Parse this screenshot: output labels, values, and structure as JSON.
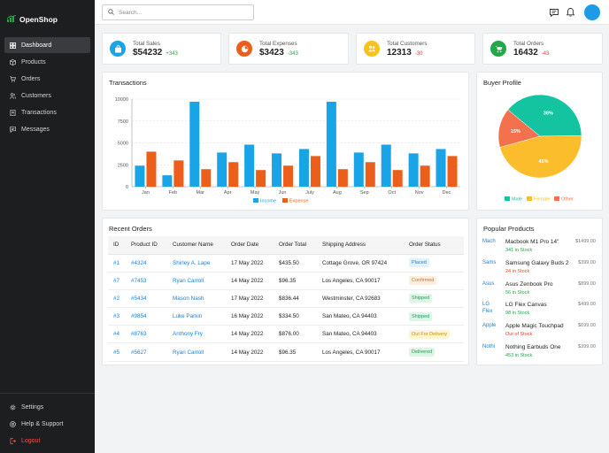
{
  "brand": {
    "name": "OpenShop"
  },
  "colors": {
    "sidebar": "#1d1e20",
    "accent": "#1e9be5",
    "income": "#18a4e6",
    "expense": "#ec5f1b"
  },
  "sidebar": {
    "items": [
      {
        "label": "Dashboard",
        "icon": "grid-icon",
        "active": true
      },
      {
        "label": "Products",
        "icon": "box-icon"
      },
      {
        "label": "Orders",
        "icon": "cart-icon"
      },
      {
        "label": "Customers",
        "icon": "users-icon"
      },
      {
        "label": "Transactions",
        "icon": "receipt-icon"
      },
      {
        "label": "Messages",
        "icon": "message-icon"
      }
    ],
    "bottom": [
      {
        "label": "Settings",
        "icon": "gear-icon"
      },
      {
        "label": "Help & Support",
        "icon": "help-icon"
      },
      {
        "label": "Logout",
        "icon": "logout-icon"
      }
    ]
  },
  "search": {
    "placeholder": "Search..."
  },
  "stats": [
    {
      "label": "Total Sales",
      "value": "$54232",
      "change": "+343",
      "color": "#18a4e6",
      "icon": "shopping-bag-icon"
    },
    {
      "label": "Total Expenses",
      "value": "$3423",
      "change": "-343",
      "color": "#ec5f1b",
      "icon": "pie-icon"
    },
    {
      "label": "Total Customers",
      "value": "12313",
      "change": "-30",
      "color": "#f6c21c",
      "icon": "users-icon"
    },
    {
      "label": "Total Orders",
      "value": "16432",
      "change": "-43",
      "color": "#22a74b",
      "icon": "cart-icon"
    }
  ],
  "transactions": {
    "title": "Transactions",
    "chart_data": {
      "type": "bar",
      "categories": [
        "Jan",
        "Feb",
        "Mar",
        "Apr",
        "May",
        "Jun",
        "July",
        "Aug",
        "Sep",
        "Oct",
        "Nov",
        "Dec"
      ],
      "series": [
        {
          "name": "Income",
          "values": [
            2400,
            1300,
            9700,
            3900,
            4800,
            3800,
            4300,
            9700,
            3900,
            4800,
            3800,
            4300
          ]
        },
        {
          "name": "Expense",
          "values": [
            4000,
            3000,
            2000,
            2800,
            1900,
            2400,
            3500,
            2000,
            2800,
            1900,
            2400,
            3500
          ]
        }
      ],
      "ylim": [
        0,
        10000
      ],
      "yticks": [
        "0",
        "2500",
        "5000",
        "7500",
        "10000"
      ],
      "grid": true,
      "legend": "bottom-center"
    }
  },
  "buyer_profile": {
    "title": "Buyer Profile",
    "chart_data": {
      "type": "pie",
      "slices": [
        {
          "name": "Male",
          "value": 38,
          "label": "38%",
          "color": "#14c4a0"
        },
        {
          "name": "Female",
          "value": 45,
          "label": "45%",
          "color": "#fbbd2b"
        },
        {
          "name": "Other",
          "value": 15,
          "label": "15%",
          "color": "#f4714d"
        }
      ],
      "legend": "bottom-center"
    }
  },
  "orders": {
    "title": "Recent Orders",
    "columns": [
      "ID",
      "Product ID",
      "Customer Name",
      "Order Date",
      "Order Total",
      "Shipping Address",
      "Order Status"
    ],
    "rows": [
      {
        "id": "#1",
        "pid": "#4324",
        "name": "Shirley A. Lape",
        "date": "17 May 2022",
        "total": "$435.50",
        "addr": "Cottage Grove, OR 97424",
        "status": "Placed",
        "sclass": "badge-placed"
      },
      {
        "id": "#7",
        "pid": "#7453",
        "name": "Ryan Carroll",
        "date": "14 May 2022",
        "total": "$96.35",
        "addr": "Los Angeles, CA 90017",
        "status": "Confirmed",
        "sclass": "badge-confirmed"
      },
      {
        "id": "#2",
        "pid": "#5434",
        "name": "Mason Nash",
        "date": "17 May 2022",
        "total": "$836.44",
        "addr": "Westminster, CA 92683",
        "status": "Shipped",
        "sclass": "badge-shipped"
      },
      {
        "id": "#3",
        "pid": "#9854",
        "name": "Luke Parkin",
        "date": "16 May 2022",
        "total": "$334.50",
        "addr": "San Mateo, CA 94403",
        "status": "Shipped",
        "sclass": "badge-shipped"
      },
      {
        "id": "#4",
        "pid": "#8763",
        "name": "Anthony Fry",
        "date": "14 May 2022",
        "total": "$876.00",
        "addr": "San Mateo, CA 94403",
        "status": "Out For Delivery",
        "sclass": "badge-ofd"
      },
      {
        "id": "#5",
        "pid": "#5627",
        "name": "Ryan Carroll",
        "date": "14 May 2022",
        "total": "$96.35",
        "addr": "Los Angeles, CA 90017",
        "status": "Delivered",
        "sclass": "badge-delivered"
      }
    ]
  },
  "products": {
    "title": "Popular Products",
    "items": [
      {
        "img": "Mach",
        "name": "Macbook M1 Pro 14\"",
        "stock": "341 in Stock",
        "sclass": "in-stock",
        "price": "$1499.00"
      },
      {
        "img": "Sams",
        "name": "Samsung Galaxy Buds 2",
        "stock": "24 in Stock",
        "sclass": "low-stock",
        "price": "$399.00"
      },
      {
        "img": "Asus",
        "name": "Asus Zenbook Pro",
        "stock": "56 in Stock",
        "sclass": "in-stock",
        "price": "$899.00"
      },
      {
        "img": "LG Flex",
        "name": "LG Flex Canvas",
        "stock": "98 in Stock",
        "sclass": "in-stock",
        "price": "$499.00"
      },
      {
        "img": "Apple",
        "name": "Apple Magic Touchpad",
        "stock": "Out of Stock",
        "sclass": "out-stock",
        "price": "$699.00"
      },
      {
        "img": "Nothi",
        "name": "Nothing Earbuds One",
        "stock": "453 in Stock",
        "sclass": "in-stock",
        "price": "$399.00"
      }
    ]
  }
}
